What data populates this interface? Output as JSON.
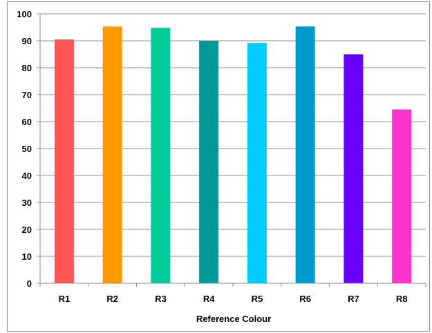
{
  "chart_data": {
    "type": "bar",
    "categories": [
      "R1",
      "R2",
      "R3",
      "R4",
      "R5",
      "R6",
      "R7",
      "R8"
    ],
    "values": [
      90.5,
      95.3,
      94.8,
      90.0,
      89.2,
      95.3,
      85.0,
      64.5
    ],
    "colors": [
      "#ff5555",
      "#ff9900",
      "#00cc99",
      "#009999",
      "#00ccff",
      "#0099cc",
      "#6600ff",
      "#ff33cc"
    ],
    "title": "",
    "xlabel": "Reference Colour",
    "ylabel": "",
    "ylim": [
      0,
      100
    ],
    "yticks": [
      0,
      10,
      20,
      30,
      40,
      50,
      60,
      70,
      80,
      90,
      100
    ],
    "grid": true,
    "legend": "none"
  }
}
